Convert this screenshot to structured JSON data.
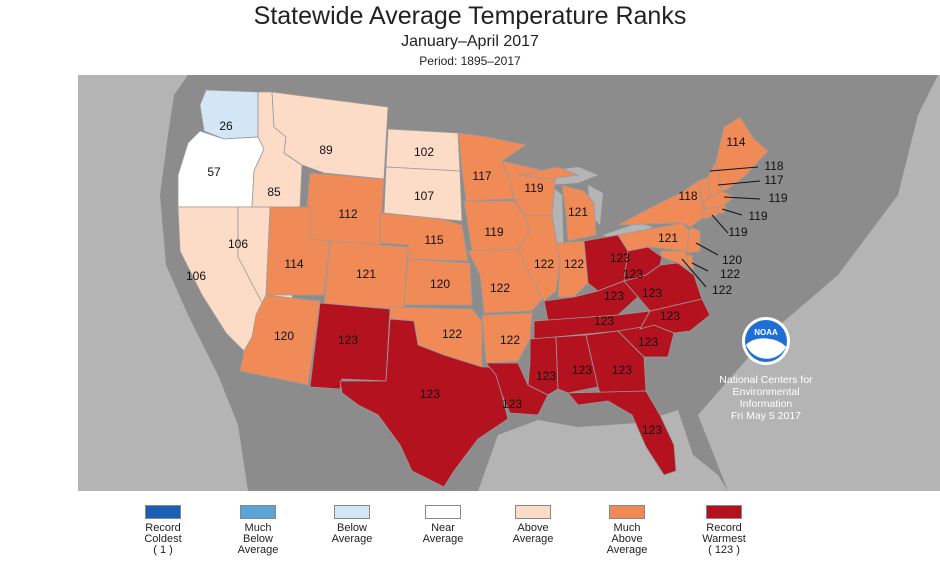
{
  "header": {
    "title": "Statewide Average Temperature Ranks",
    "subtitle": "January–April 2017",
    "period": "Period: 1895–2017"
  },
  "colors": {
    "record_coldest": "#1b5fb3",
    "much_below": "#5ba4d6",
    "below": "#d3e6f5",
    "near": "#ffffff",
    "above": "#fcdcc6",
    "much_above": "#f08a56",
    "record_warmest": "#b51220",
    "land_gray": "#8c8c8c",
    "water_gray": "#b4b4b4"
  },
  "states": [
    {
      "abbr": "WA",
      "rank": "26",
      "category": "below"
    },
    {
      "abbr": "OR",
      "rank": "57",
      "category": "near"
    },
    {
      "abbr": "CA",
      "rank": "106",
      "category": "above"
    },
    {
      "abbr": "ID",
      "rank": "85",
      "category": "above"
    },
    {
      "abbr": "NV",
      "rank": "106",
      "category": "above"
    },
    {
      "abbr": "MT",
      "rank": "89",
      "category": "above"
    },
    {
      "abbr": "WY",
      "rank": "112",
      "category": "much_above"
    },
    {
      "abbr": "UT",
      "rank": "114",
      "category": "much_above"
    },
    {
      "abbr": "AZ",
      "rank": "120",
      "category": "much_above"
    },
    {
      "abbr": "CO",
      "rank": "121",
      "category": "much_above"
    },
    {
      "abbr": "NM",
      "rank": "123",
      "category": "record_warmest"
    },
    {
      "abbr": "ND",
      "rank": "102",
      "category": "above"
    },
    {
      "abbr": "SD",
      "rank": "107",
      "category": "above"
    },
    {
      "abbr": "NE",
      "rank": "115",
      "category": "much_above"
    },
    {
      "abbr": "KS",
      "rank": "120",
      "category": "much_above"
    },
    {
      "abbr": "OK",
      "rank": "122",
      "category": "much_above"
    },
    {
      "abbr": "TX",
      "rank": "123",
      "category": "record_warmest"
    },
    {
      "abbr": "MN",
      "rank": "117",
      "category": "much_above"
    },
    {
      "abbr": "IA",
      "rank": "119",
      "category": "much_above"
    },
    {
      "abbr": "MO",
      "rank": "122",
      "category": "much_above"
    },
    {
      "abbr": "AR",
      "rank": "122",
      "category": "much_above"
    },
    {
      "abbr": "LA",
      "rank": "123",
      "category": "record_warmest"
    },
    {
      "abbr": "WI",
      "rank": "119",
      "category": "much_above"
    },
    {
      "abbr": "IL",
      "rank": "122",
      "category": "much_above"
    },
    {
      "abbr": "MI",
      "rank": "121",
      "category": "much_above"
    },
    {
      "abbr": "IN",
      "rank": "122",
      "category": "much_above"
    },
    {
      "abbr": "OH",
      "rank": "123",
      "category": "record_warmest"
    },
    {
      "abbr": "KY",
      "rank": "123",
      "category": "record_warmest"
    },
    {
      "abbr": "TN",
      "rank": "123",
      "category": "record_warmest"
    },
    {
      "abbr": "MS",
      "rank": "123",
      "category": "record_warmest"
    },
    {
      "abbr": "AL",
      "rank": "123",
      "category": "record_warmest"
    },
    {
      "abbr": "GA",
      "rank": "123",
      "category": "record_warmest"
    },
    {
      "abbr": "FL",
      "rank": "123",
      "category": "record_warmest"
    },
    {
      "abbr": "SC",
      "rank": "123",
      "category": "record_warmest"
    },
    {
      "abbr": "NC",
      "rank": "123",
      "category": "record_warmest"
    },
    {
      "abbr": "VA",
      "rank": "123",
      "category": "record_warmest"
    },
    {
      "abbr": "WV",
      "rank": "123",
      "category": "record_warmest"
    },
    {
      "abbr": "PA",
      "rank": "121",
      "category": "much_above"
    },
    {
      "abbr": "NY",
      "rank": "118",
      "category": "much_above"
    },
    {
      "abbr": "ME",
      "rank": "114",
      "category": "much_above"
    },
    {
      "abbr": "VT",
      "rank": "118",
      "category": "much_above"
    },
    {
      "abbr": "NH",
      "rank": "117",
      "category": "much_above"
    },
    {
      "abbr": "MA",
      "rank": "119",
      "category": "much_above"
    },
    {
      "abbr": "RI",
      "rank": "119",
      "category": "much_above"
    },
    {
      "abbr": "CT",
      "rank": "119",
      "category": "much_above"
    },
    {
      "abbr": "NJ",
      "rank": "120",
      "category": "much_above"
    },
    {
      "abbr": "DE",
      "rank": "122",
      "category": "much_above"
    },
    {
      "abbr": "MD",
      "rank": "122",
      "category": "much_above"
    }
  ],
  "noaa": {
    "logo_text": "NOAA",
    "line1": "National Centers for",
    "line2": "Environmental",
    "line3": "Information",
    "line4": "Fri May  5 2017"
  },
  "legend": [
    {
      "label": "Record\nColdest\n( 1 )",
      "color_key": "record_coldest"
    },
    {
      "label": "Much\nBelow\nAverage",
      "color_key": "much_below"
    },
    {
      "label": "Below\nAverage",
      "color_key": "below"
    },
    {
      "label": "Near\nAverage",
      "color_key": "near"
    },
    {
      "label": "Above\nAverage",
      "color_key": "above"
    },
    {
      "label": "Much\nAbove\nAverage",
      "color_key": "much_above"
    },
    {
      "label": "Record\nWarmest\n( 123 )",
      "color_key": "record_warmest"
    }
  ]
}
